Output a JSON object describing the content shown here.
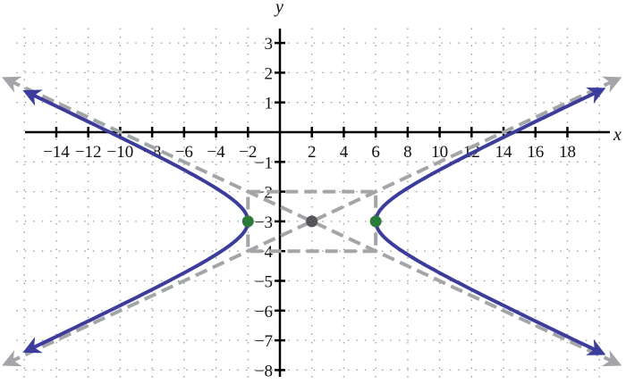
{
  "chart_data": {
    "type": "line",
    "xlabel": "x",
    "ylabel": "y",
    "xlim": [
      -16,
      20
    ],
    "ylim": [
      -8.5,
      3.5
    ],
    "x_ticks": [
      -14,
      -12,
      -10,
      -8,
      -6,
      -4,
      -2,
      2,
      4,
      6,
      8,
      10,
      12,
      14,
      16,
      18
    ],
    "y_ticks": [
      3,
      2,
      1,
      -1,
      -2,
      -3,
      -4,
      -5,
      -6,
      -7,
      -8
    ],
    "x_tick_labels": [
      "−14",
      "−12",
      "−10",
      "−8",
      "−6",
      "−4",
      "−2",
      "2",
      "4",
      "6",
      "8",
      "10",
      "12",
      "14",
      "16",
      "18"
    ],
    "y_tick_labels": [
      "3",
      "2",
      "1",
      "−1",
      "−2",
      "−3",
      "−4",
      "−5",
      "−6",
      "−7",
      "−8"
    ],
    "grid": true,
    "hyperbola": {
      "center": [
        2,
        -3
      ],
      "a": 4,
      "b": 1,
      "orientation": "horizontal",
      "vertices": [
        [
          -2,
          -3
        ],
        [
          6,
          -3
        ]
      ],
      "left_branch_x_min": -15.7,
      "right_branch_x_max": 20.0
    },
    "asymptotes": [
      {
        "slope": 0.25,
        "intercept_at_center": -3,
        "x_range": [
          -17,
          21
        ]
      },
      {
        "slope": -0.25,
        "intercept_at_center": -3,
        "x_range": [
          -17,
          21
        ]
      }
    ],
    "fundamental_rectangle": {
      "x": [
        -2,
        6
      ],
      "y": [
        -4,
        -2
      ]
    },
    "colors": {
      "curve": "#3c3c9c",
      "asymptote": "#a3a5a8",
      "vertex": "#2a7a3a",
      "center": "#555558",
      "axis": "#000000",
      "grid": "#9a9a9a"
    }
  }
}
